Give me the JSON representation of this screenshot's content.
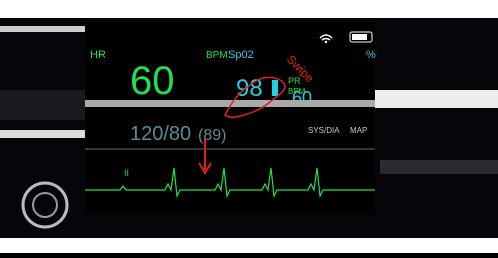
{
  "gesture": {
    "label": "Swipe"
  },
  "vitals": {
    "hr": {
      "label": "HR",
      "unit": "BPM",
      "value": "60"
    },
    "spo2": {
      "label": "Sp02",
      "unit": "%",
      "value": "98"
    },
    "pr": {
      "label": "PR",
      "unit": "BPM",
      "value": "60"
    },
    "nibp": {
      "value": "120/80",
      "map": "(89)",
      "sys_dia_label": "SYS/DIA",
      "map_label": "MAP"
    }
  },
  "ecg": {
    "lead": "II"
  }
}
